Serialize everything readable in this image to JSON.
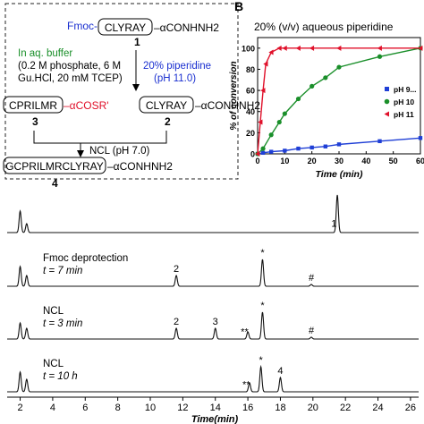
{
  "scheme": {
    "fmoc_prefix": "Fmoc-",
    "peptide_box": "CLYRAY",
    "hydrazide_suffix": "–αCONHNH2",
    "label_1": "1",
    "buffer_line1": "In aq. buffer",
    "buffer_line2": "(0.2 M phosphate, 6 M",
    "buffer_line3": "Gu.HCl, 20 mM TCEP)",
    "piperidine_line1": "20% piperidine",
    "piperidine_line2": "(pH 11.0)",
    "thioester_box": "CPRILMR",
    "thioester_suffix": "–αCOSR'",
    "peptide_box_2": "CLYRAY",
    "label_3": "3",
    "label_2": "2",
    "ncl_condition": "NCL (pH 7.0)",
    "product_box": "GCPRILMRCLYRAY",
    "label_4": "4"
  },
  "panel_b": {
    "panel_letter": "B",
    "title": "20% (v/v) aqueous piperidine",
    "ylabel": "% of conversion",
    "xlabel": "Time (min)",
    "yticks": [
      "0",
      "20",
      "40",
      "60",
      "80",
      "100"
    ],
    "xticks": [
      "0",
      "10",
      "20",
      "30",
      "40",
      "50",
      "60"
    ],
    "legend": [
      "pH 9...",
      "pH 10",
      "pH 11"
    ],
    "colors": [
      "#1f3fd6",
      "#1a8f2a",
      "#e0102a"
    ]
  },
  "chart_data": {
    "type": "scatter",
    "title": "20% (v/v) aqueous piperidine",
    "xlabel": "Time (min)",
    "ylabel": "% of conversion",
    "xlim": [
      0,
      60
    ],
    "ylim": [
      0,
      110
    ],
    "series": [
      {
        "name": "pH 9...",
        "x": [
          0,
          2,
          5,
          10,
          15,
          20,
          25,
          30,
          45,
          60
        ],
        "y": [
          0,
          1,
          2,
          3,
          5,
          6,
          7,
          9,
          12,
          15
        ]
      },
      {
        "name": "pH 10",
        "x": [
          0,
          2,
          5,
          8,
          10,
          15,
          20,
          25,
          30,
          45,
          60
        ],
        "y": [
          0,
          5,
          18,
          30,
          38,
          52,
          64,
          72,
          82,
          92,
          100
        ]
      },
      {
        "name": "pH 11",
        "x": [
          0,
          1,
          2,
          3,
          5,
          8,
          10,
          15,
          20,
          30,
          45,
          60
        ],
        "y": [
          0,
          30,
          60,
          85,
          96,
          100,
          100,
          100,
          100,
          100,
          100,
          100
        ]
      }
    ]
  },
  "chromatogram": {
    "xlabel": "Time(min)",
    "xticks": [
      "2",
      "4",
      "6",
      "8",
      "10",
      "12",
      "14",
      "16",
      "18",
      "20",
      "22",
      "24",
      "26"
    ],
    "xrange": [
      1.2,
      26.5
    ],
    "traces": [
      {
        "label_line1": "",
        "label_line2": "",
        "peaks": [
          {
            "t": 2.0,
            "h": 24
          },
          {
            "t": 2.4,
            "h": 10
          },
          {
            "t": 21.5,
            "h": 42
          }
        ],
        "peak_labels": [
          {
            "t": 21.3,
            "text": "1"
          }
        ]
      },
      {
        "label_line1": "Fmoc deprotection",
        "label_line2": "t = 7 min",
        "peaks": [
          {
            "t": 2.0,
            "h": 22
          },
          {
            "t": 2.4,
            "h": 12
          },
          {
            "t": 11.6,
            "h": 12
          },
          {
            "t": 16.9,
            "h": 30
          },
          {
            "t": 19.9,
            "h": 2
          }
        ],
        "peak_labels": [
          {
            "t": 11.6,
            "text": "2"
          },
          {
            "t": 16.9,
            "text": "*"
          },
          {
            "t": 19.9,
            "text": "#"
          }
        ]
      },
      {
        "label_line1": "NCL",
        "label_line2": "t = 3 min",
        "peaks": [
          {
            "t": 2.0,
            "h": 18
          },
          {
            "t": 2.4,
            "h": 12
          },
          {
            "t": 11.6,
            "h": 12
          },
          {
            "t": 14.0,
            "h": 12
          },
          {
            "t": 16.0,
            "h": 8
          },
          {
            "t": 16.9,
            "h": 30
          },
          {
            "t": 19.9,
            "h": 2
          }
        ],
        "peak_labels": [
          {
            "t": 11.6,
            "text": "2"
          },
          {
            "t": 14.0,
            "text": "3"
          },
          {
            "t": 15.8,
            "text": "**"
          },
          {
            "t": 16.9,
            "text": "*"
          },
          {
            "t": 19.9,
            "text": "#"
          }
        ]
      },
      {
        "label_line1": "NCL",
        "label_line2": "t = 10 h",
        "peaks": [
          {
            "t": 2.0,
            "h": 22
          },
          {
            "t": 2.4,
            "h": 14
          },
          {
            "t": 16.1,
            "h": 10
          },
          {
            "t": 16.8,
            "h": 28
          },
          {
            "t": 18.0,
            "h": 16
          }
        ],
        "peak_labels": [
          {
            "t": 15.9,
            "text": "**"
          },
          {
            "t": 16.8,
            "text": "*"
          },
          {
            "t": 18.0,
            "text": "4"
          }
        ]
      }
    ]
  }
}
